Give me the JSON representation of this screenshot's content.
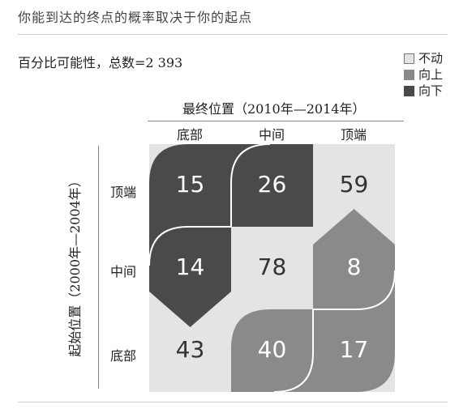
{
  "title": "你能到达的终点的概率取决于你的起点",
  "subtitle": "百分比可能性，总数=2 393",
  "legend": [
    {
      "key": "stay",
      "label": "不动"
    },
    {
      "key": "up",
      "label": "向上"
    },
    {
      "key": "down",
      "label": "向下"
    }
  ],
  "chart_data": {
    "type": "heatmap",
    "title": "你能到达的终点的概率取决于你的起点",
    "subtitle": "百分比可能性，总数=2 393",
    "xlabel": "最终位置（2010年—2014年）",
    "ylabel": "起始位置（2000年—2004年）",
    "x_categories": [
      "底部",
      "中间",
      "顶端"
    ],
    "y_categories": [
      "顶端",
      "中间",
      "底部"
    ],
    "cells": [
      {
        "row": "顶端",
        "col": "底部",
        "value": 15,
        "group": "down"
      },
      {
        "row": "顶端",
        "col": "中间",
        "value": 26,
        "group": "down"
      },
      {
        "row": "顶端",
        "col": "顶端",
        "value": 59,
        "group": "stay"
      },
      {
        "row": "中间",
        "col": "底部",
        "value": 14,
        "group": "down"
      },
      {
        "row": "中间",
        "col": "中间",
        "value": 78,
        "group": "stay"
      },
      {
        "row": "中间",
        "col": "顶端",
        "value": 8,
        "group": "up"
      },
      {
        "row": "底部",
        "col": "底部",
        "value": 43,
        "group": "stay"
      },
      {
        "row": "底部",
        "col": "中间",
        "value": 40,
        "group": "up"
      },
      {
        "row": "底部",
        "col": "顶端",
        "value": 17,
        "group": "up"
      }
    ],
    "colors": {
      "stay": "#e4e4e4",
      "up": "#8a8a8a",
      "down": "#4a4a4a"
    }
  }
}
